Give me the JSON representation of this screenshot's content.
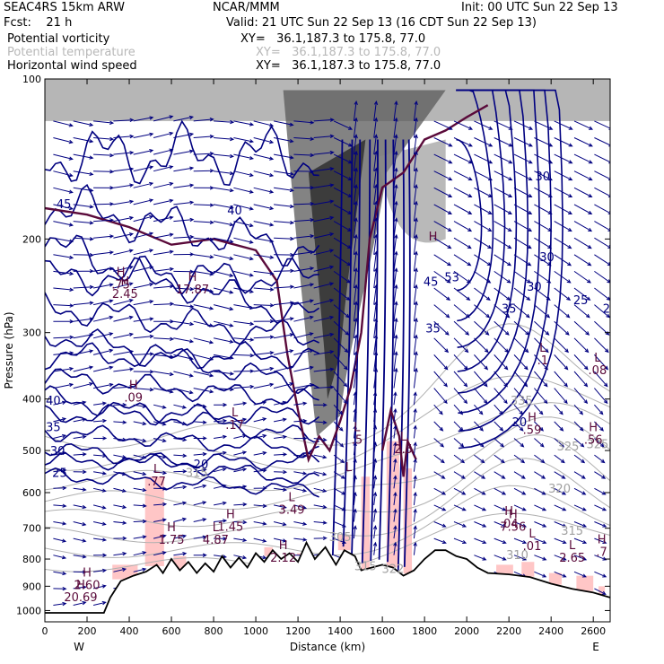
{
  "header": {
    "model": "SEAC4RS 15km ARW",
    "center": "NCAR/MMM",
    "init": "Init: 00 UTC Sun 22 Sep 13",
    "fcst": "Fcst:    21 h",
    "valid": "Valid: 21 UTC Sun 22 Sep 13 (16 CDT Sun 22 Sep 13)",
    "fields": [
      {
        "name": "Potential vorticity",
        "xy": "XY=   36.1,187.3 to 175.8, 77.0"
      },
      {
        "name": "Potential temperature",
        "xy": "XY=   36.1,187.3 to 175.8, 77.0"
      },
      {
        "name": "Horizontal wind speed",
        "xy": "XY=   36.1,187.3 to 175.8, 77.0"
      }
    ]
  },
  "colors": {
    "wind": "#000080",
    "pv_dark": "#5a0a3a",
    "theta": "#b0b0b0",
    "pink": "#ffc0c0",
    "grey_shade": "#555555",
    "terrain": "#000000"
  },
  "chart_data": {
    "type": "cross-section",
    "xlabel": "Distance (km)",
    "ylabel": "Pressure (hPa)",
    "x_ticks": [
      0,
      200,
      400,
      600,
      800,
      1000,
      1200,
      1400,
      1600,
      1800,
      2000,
      2200,
      2400,
      2600
    ],
    "y_ticks": [
      100,
      200,
      300,
      400,
      500,
      600,
      700,
      800,
      900,
      1000
    ],
    "y_scale": "log",
    "x_range": [
      0,
      2680
    ],
    "y_range": [
      1050,
      100
    ],
    "left_end": "W",
    "right_end": "E",
    "terrain_profile": [
      [
        0,
        1010
      ],
      [
        280,
        1010
      ],
      [
        310,
        945
      ],
      [
        360,
        880
      ],
      [
        420,
        860
      ],
      [
        480,
        845
      ],
      [
        530,
        820
      ],
      [
        560,
        850
      ],
      [
        600,
        800
      ],
      [
        640,
        840
      ],
      [
        680,
        810
      ],
      [
        720,
        850
      ],
      [
        760,
        815
      ],
      [
        800,
        845
      ],
      [
        840,
        790
      ],
      [
        880,
        830
      ],
      [
        920,
        795
      ],
      [
        960,
        830
      ],
      [
        1000,
        780
      ],
      [
        1040,
        810
      ],
      [
        1080,
        770
      ],
      [
        1120,
        800
      ],
      [
        1160,
        780
      ],
      [
        1200,
        810
      ],
      [
        1240,
        745
      ],
      [
        1280,
        800
      ],
      [
        1330,
        760
      ],
      [
        1380,
        820
      ],
      [
        1420,
        770
      ],
      [
        1470,
        790
      ],
      [
        1500,
        840
      ],
      [
        1550,
        830
      ],
      [
        1600,
        820
      ],
      [
        1650,
        830
      ],
      [
        1700,
        860
      ],
      [
        1750,
        840
      ],
      [
        1800,
        800
      ],
      [
        1850,
        770
      ],
      [
        1900,
        770
      ],
      [
        1950,
        790
      ],
      [
        2000,
        800
      ],
      [
        2050,
        830
      ],
      [
        2100,
        850
      ],
      [
        2200,
        855
      ],
      [
        2300,
        865
      ],
      [
        2400,
        890
      ],
      [
        2500,
        910
      ],
      [
        2600,
        925
      ],
      [
        2680,
        945
      ]
    ],
    "theta_contour_labels": [
      {
        "x": 1400,
        "p": 740,
        "text": "305"
      },
      {
        "x": 1520,
        "p": 840,
        "text": "315"
      },
      {
        "x": 1650,
        "p": 850,
        "text": "322"
      },
      {
        "x": 2260,
        "p": 410,
        "text": "335"
      },
      {
        "x": 2480,
        "p": 500,
        "text": "325"
      },
      {
        "x": 2620,
        "p": 495,
        "text": "325"
      },
      {
        "x": 2440,
        "p": 600,
        "text": "320"
      },
      {
        "x": 2500,
        "p": 720,
        "text": "315"
      },
      {
        "x": 2240,
        "p": 800,
        "text": "310"
      },
      {
        "x": 720,
        "p": 560,
        "text": "315"
      }
    ],
    "wind_speed_labels": [
      {
        "x": 90,
        "p": 175,
        "text": "45"
      },
      {
        "x": 900,
        "p": 180,
        "text": "40"
      },
      {
        "x": 2380,
        "p": 220,
        "text": "30"
      },
      {
        "x": 2200,
        "p": 275,
        "text": "35"
      },
      {
        "x": 2320,
        "p": 250,
        "text": "30"
      },
      {
        "x": 2540,
        "p": 265,
        "text": "25"
      },
      {
        "x": 2680,
        "p": 275,
        "text": "20"
      },
      {
        "x": 2360,
        "p": 155,
        "text": "30"
      },
      {
        "x": 1840,
        "p": 300,
        "text": "35"
      },
      {
        "x": 2250,
        "p": 450,
        "text": "20"
      },
      {
        "x": 40,
        "p": 410,
        "text": "40"
      },
      {
        "x": 40,
        "p": 460,
        "text": "35"
      },
      {
        "x": 60,
        "p": 510,
        "text": "30"
      },
      {
        "x": 70,
        "p": 560,
        "text": "25"
      },
      {
        "x": 740,
        "p": 540,
        "text": "20"
      },
      {
        "x": 1830,
        "p": 245,
        "text": "45"
      },
      {
        "x": 1930,
        "p": 240,
        "text": "53"
      }
    ],
    "pv_highs_lows": [
      {
        "type": "H",
        "x": 360,
        "p": 245,
        "text": ".75"
      },
      {
        "type": "H",
        "x": 380,
        "p": 255,
        "text": "2.45"
      },
      {
        "type": "H",
        "x": 700,
        "p": 250,
        "text": "17.87"
      },
      {
        "type": "H",
        "x": 420,
        "p": 400,
        "text": ".09"
      },
      {
        "type": "L",
        "x": 900,
        "p": 450,
        "text": ".17"
      },
      {
        "type": "L",
        "x": 530,
        "p": 575,
        "text": ".77"
      },
      {
        "type": "L",
        "x": 1170,
        "p": 650,
        "text": "3.49"
      },
      {
        "type": "H",
        "x": 880,
        "p": 700,
        "text": "1.45"
      },
      {
        "type": "H",
        "x": 600,
        "p": 740,
        "text": "1.75"
      },
      {
        "type": "L",
        "x": 810,
        "p": 740,
        "text": "4.87"
      },
      {
        "type": "H",
        "x": 1130,
        "p": 800,
        "text": "2.12"
      },
      {
        "type": "H",
        "x": 2200,
        "p": 690,
        "text": ".04"
      },
      {
        "type": "H",
        "x": 2220,
        "p": 700,
        "text": "7.56"
      },
      {
        "type": "L",
        "x": 2310,
        "p": 760,
        "text": ".01"
      },
      {
        "type": "L",
        "x": 2500,
        "p": 800,
        "text": "2.65"
      },
      {
        "type": "H",
        "x": 2640,
        "p": 780,
        "text": ".7"
      },
      {
        "type": "H",
        "x": 2310,
        "p": 460,
        "text": ".59"
      },
      {
        "type": "H",
        "x": 2600,
        "p": 480,
        "text": ".56"
      },
      {
        "type": "L",
        "x": 2360,
        "p": 340,
        "text": ".1"
      },
      {
        "type": "L",
        "x": 2620,
        "p": 355,
        "text": ".08"
      },
      {
        "type": "L",
        "x": 1480,
        "p": 480,
        "text": ".5"
      },
      {
        "type": "L",
        "x": 1700,
        "p": 500,
        "text": "2.5"
      },
      {
        "type": "L",
        "x": 1440,
        "p": 570,
        "text": "L"
      },
      {
        "type": "H",
        "x": 200,
        "p": 900,
        "text": "2.60"
      },
      {
        "type": "H",
        "x": 170,
        "p": 950,
        "text": "20.69"
      },
      {
        "type": "H",
        "x": 1840,
        "p": 210,
        "text": "H"
      }
    ]
  }
}
